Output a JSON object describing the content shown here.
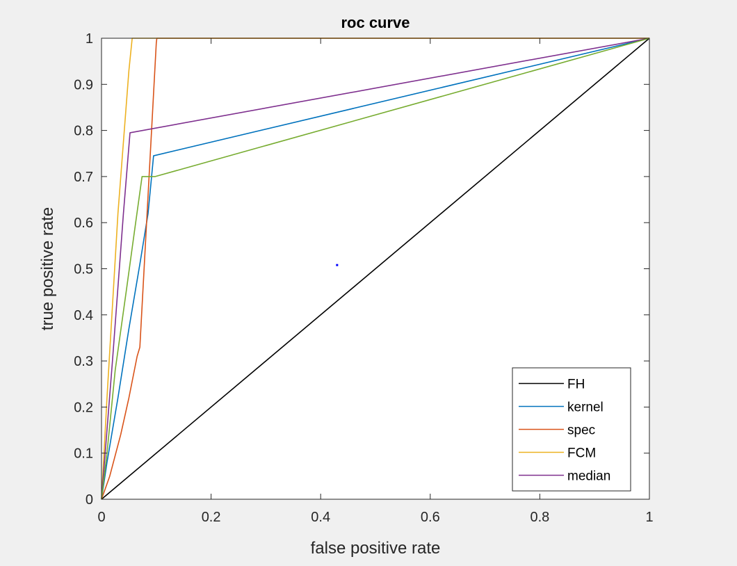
{
  "chart_data": {
    "type": "line",
    "title": "roc curve",
    "xlabel": "false positive rate",
    "ylabel": "true positive rate",
    "xlim": [
      0,
      1
    ],
    "ylim": [
      0,
      1
    ],
    "grid": false,
    "legend_position": "bottom-right",
    "xticks": [
      "0",
      "0.2",
      "0.4",
      "0.6",
      "0.8",
      "1"
    ],
    "yticks": [
      "0",
      "0.1",
      "0.2",
      "0.3",
      "0.4",
      "0.5",
      "0.6",
      "0.7",
      "0.8",
      "0.9",
      "1"
    ],
    "series": [
      {
        "name": "FH",
        "color": "#000000",
        "x": [
          0,
          1
        ],
        "y": [
          0,
          1
        ]
      },
      {
        "name": "kernel",
        "color": "#0072BD",
        "x": [
          0,
          0.01,
          0.03,
          0.05,
          0.07,
          0.085,
          0.095,
          1
        ],
        "y": [
          0,
          0.08,
          0.22,
          0.37,
          0.51,
          0.62,
          0.745,
          1
        ]
      },
      {
        "name": "spec",
        "color": "#D95319",
        "x": [
          0,
          0.015,
          0.035,
          0.05,
          0.065,
          0.07,
          0.1,
          0.101,
          1
        ],
        "y": [
          0,
          0.05,
          0.14,
          0.22,
          0.31,
          0.33,
          0.99,
          1,
          1
        ]
      },
      {
        "name": "FCM",
        "color": "#EDB120",
        "x": [
          0,
          0.01,
          0.03,
          0.05,
          0.056,
          1
        ],
        "y": [
          0,
          0.22,
          0.62,
          0.93,
          1,
          1
        ]
      },
      {
        "name": "median",
        "color": "#7E2F8E",
        "x": [
          0,
          0.02,
          0.04,
          0.052,
          1
        ],
        "y": [
          0,
          0.3,
          0.62,
          0.795,
          1
        ]
      },
      {
        "name": "",
        "color": "#77AC30",
        "x": [
          0,
          0.01,
          0.025,
          0.045,
          0.06,
          0.074,
          0.098,
          1
        ],
        "y": [
          0,
          0.1,
          0.28,
          0.45,
          0.58,
          0.7,
          0.7,
          1
        ]
      }
    ],
    "annotations": [
      {
        "type": "point",
        "color": "#0000ff",
        "x": 0.43,
        "y": 0.508
      }
    ]
  }
}
